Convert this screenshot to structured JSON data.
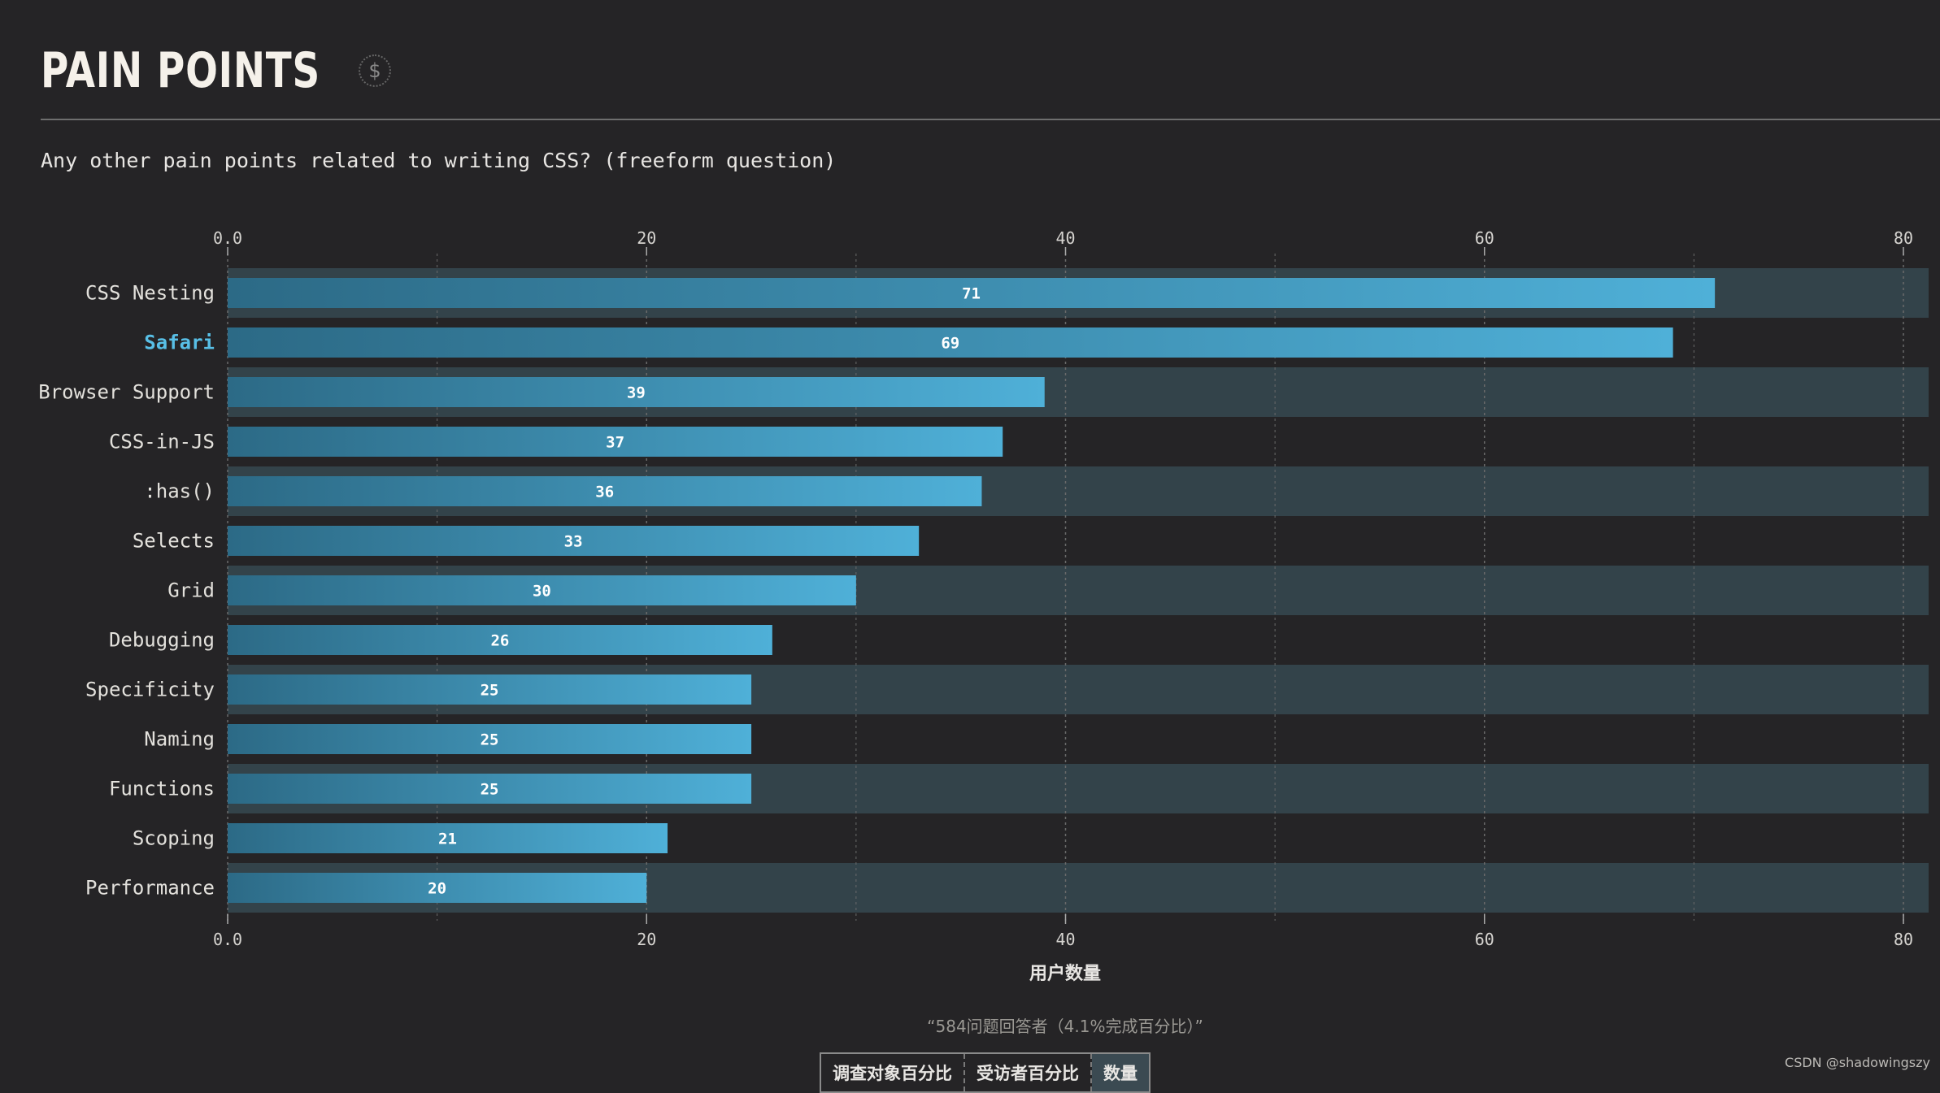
{
  "section": {
    "title": "PAIN POINTS",
    "sponsor_icon": "$"
  },
  "question": "Any other pain points related to writing CSS? (freeform question)",
  "chart_data": {
    "type": "bar",
    "orientation": "horizontal",
    "categories": [
      "CSS Nesting",
      "Safari",
      "Browser Support",
      "CSS-in-JS",
      ":has()",
      "Selects",
      "Grid",
      "Debugging",
      "Specificity",
      "Naming",
      "Functions",
      "Scoping",
      "Performance"
    ],
    "values": [
      71,
      69,
      39,
      37,
      36,
      33,
      30,
      26,
      25,
      25,
      25,
      21,
      20
    ],
    "highlighted": "Safari",
    "xlim": [
      0,
      80
    ],
    "xticks": [
      "0.0",
      "20",
      "40",
      "60",
      "80"
    ],
    "xlabel": "用户数量",
    "grid": true,
    "bar_color_start": "#2c6a86",
    "bar_color_end": "#4fb0d8",
    "band_color": "#33434a"
  },
  "footnote": "“584问题回答者（4.1%完成百分比）”",
  "tabs": [
    "调查对象百分比",
    "受访者百分比",
    "数量"
  ],
  "watermark": "CSDN @shadowingszy"
}
